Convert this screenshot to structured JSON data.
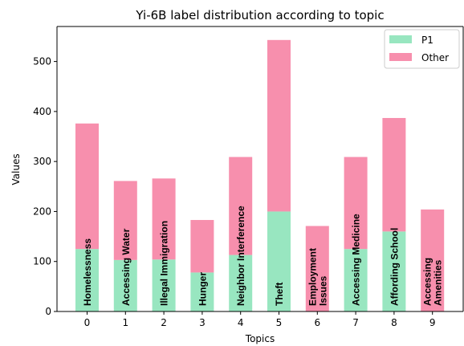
{
  "chart_data": {
    "type": "bar",
    "stacked": true,
    "title": "Yi-6B label distribution according to topic",
    "xlabel": "Topics",
    "ylabel": "Values",
    "ylim": [
      0,
      570
    ],
    "yticks": [
      0,
      100,
      200,
      300,
      400,
      500
    ],
    "grid": false,
    "legend_position": "top-right",
    "categories": [
      "0",
      "1",
      "2",
      "3",
      "4",
      "5",
      "6",
      "7",
      "8",
      "9"
    ],
    "bar_labels": [
      [
        "Homelessness"
      ],
      [
        "Accessing Water"
      ],
      [
        "Illegal Immigration"
      ],
      [
        "Hunger"
      ],
      [
        "Neighbor Interference"
      ],
      [
        "Theft"
      ],
      [
        "Employment",
        "Issues"
      ],
      [
        "Accessing Medicine"
      ],
      [
        "Affording School"
      ],
      [
        "Accessing",
        "Amenities"
      ]
    ],
    "series": [
      {
        "name": "P1",
        "color": "#98e6c0",
        "values": [
          125,
          103,
          104,
          78,
          113,
          200,
          0,
          125,
          160,
          0
        ]
      },
      {
        "name": "Other",
        "color": "#f78fad",
        "values": [
          251,
          158,
          162,
          105,
          196,
          343,
          171,
          184,
          227,
          204
        ]
      }
    ]
  }
}
